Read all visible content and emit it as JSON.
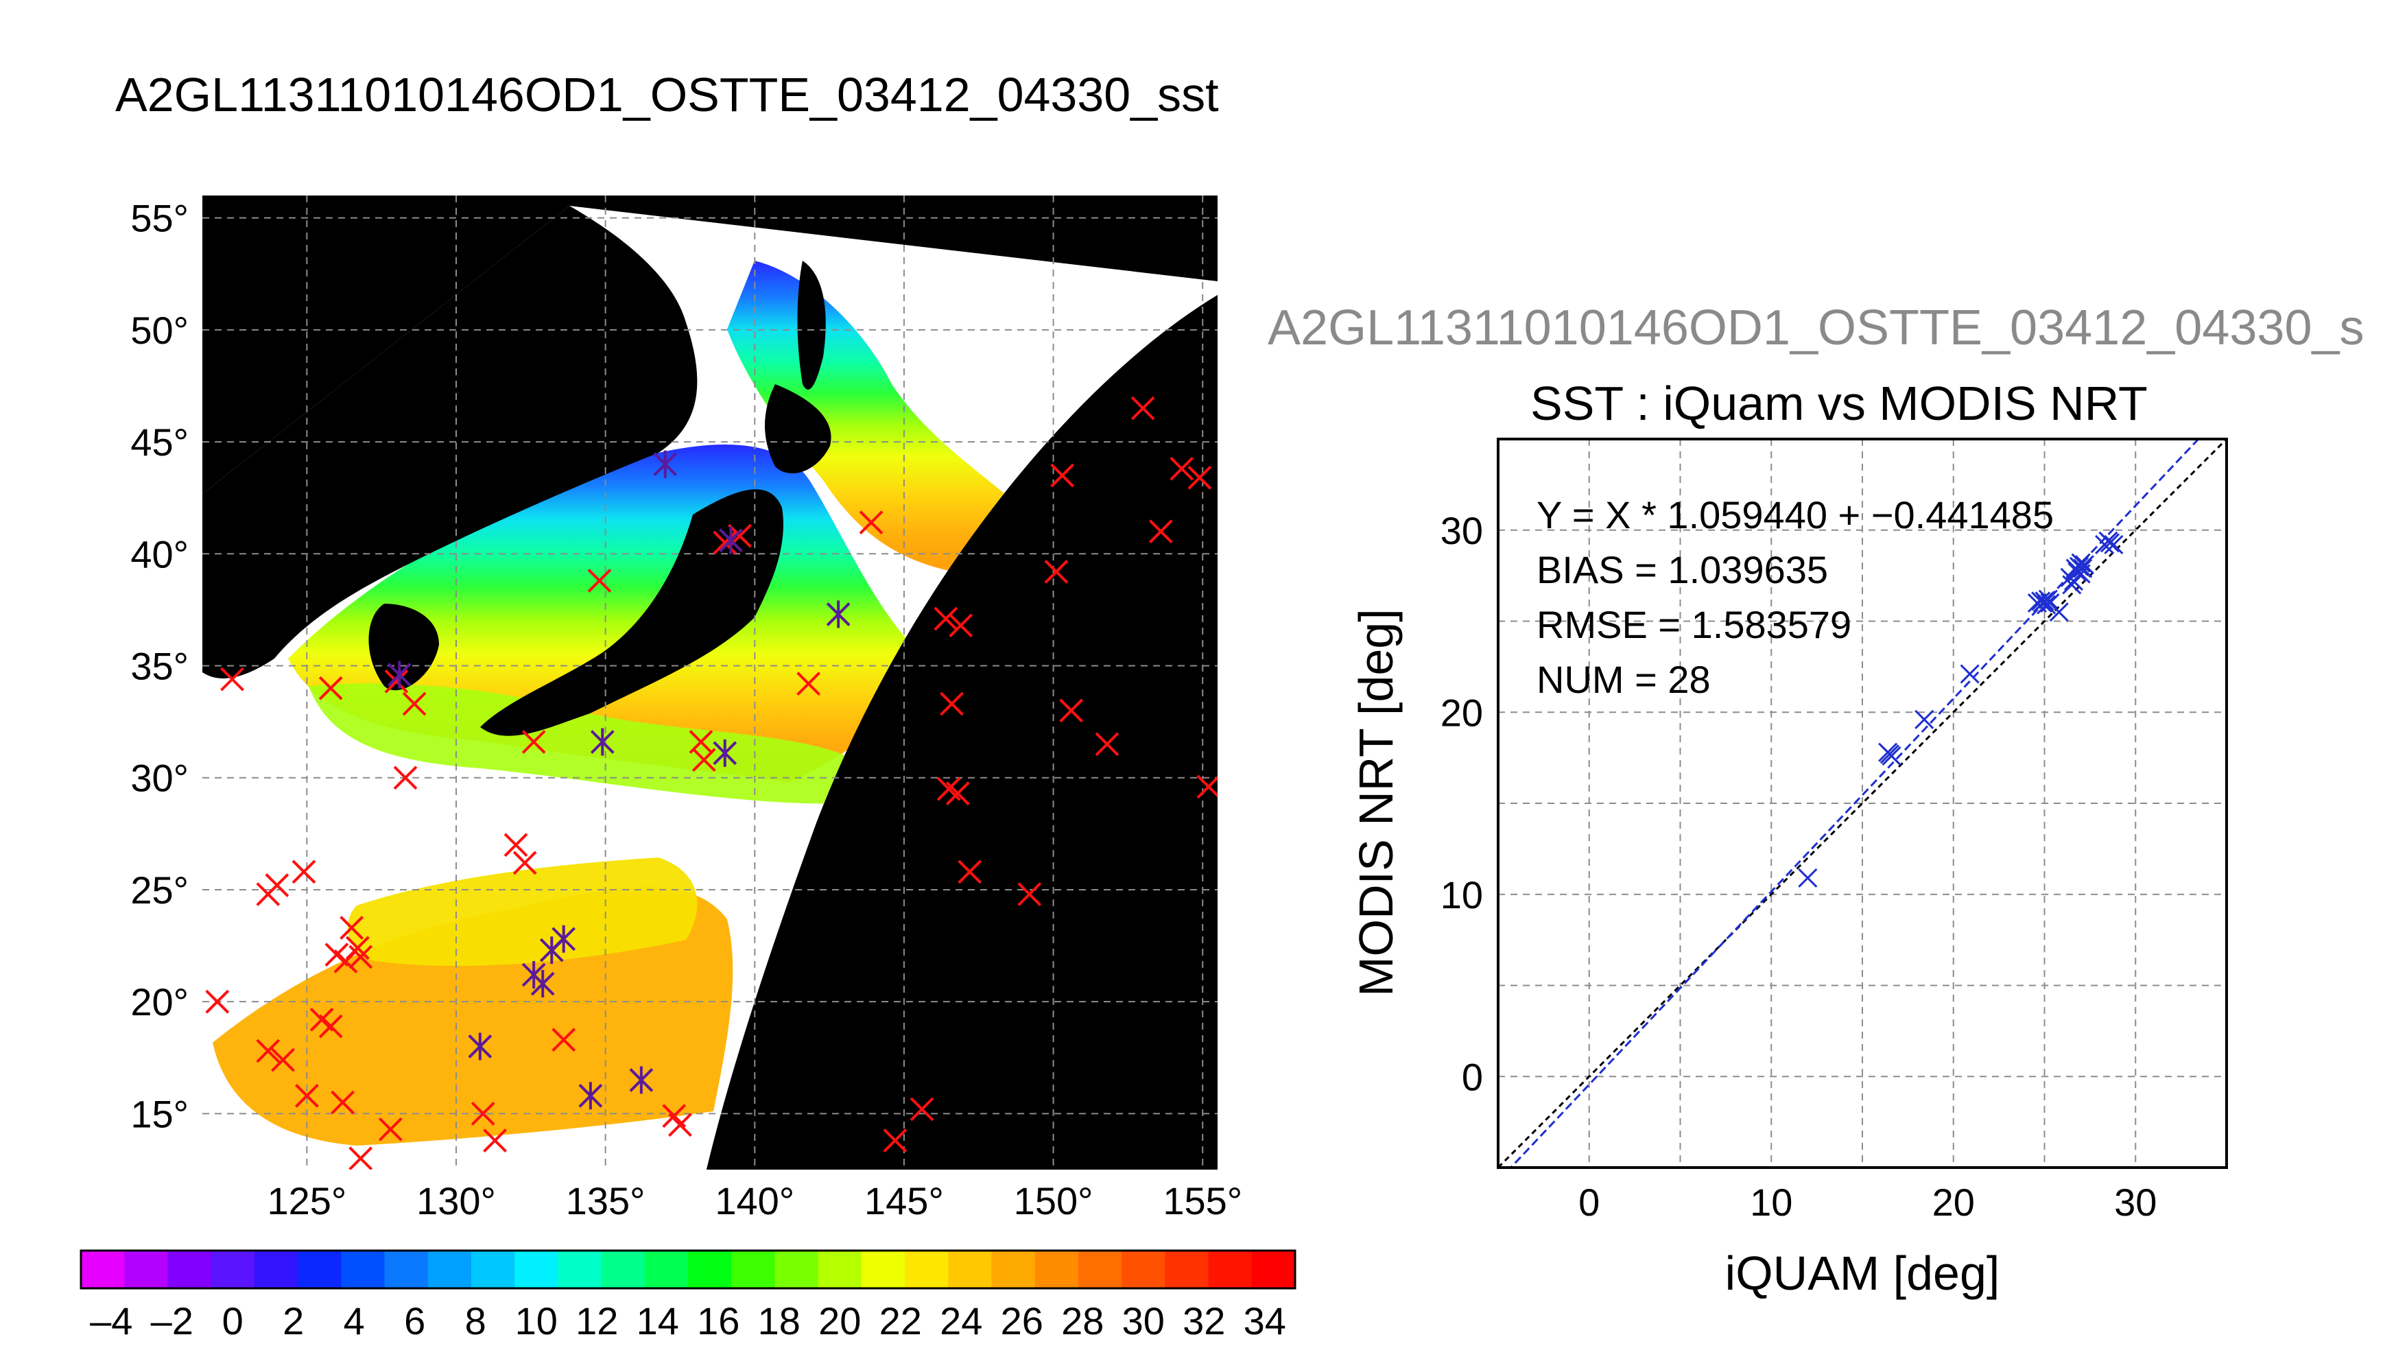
{
  "figure": {
    "title": "A2GL11311010146OD1_OSTTE_03412_04330_sst"
  },
  "map": {
    "lon_ticks": [
      125,
      130,
      135,
      140,
      145,
      150,
      155
    ],
    "lat_ticks": [
      55,
      50,
      45,
      40,
      35,
      30,
      25,
      20,
      15
    ],
    "lon_range": [
      121.5,
      155.5
    ],
    "lat_range": [
      12.5,
      56
    ],
    "degree_symbol": "°",
    "grid": true,
    "background_color": "#000000",
    "cloud_color": "#ffffff",
    "match_markers_red": [
      [
        122.5,
        34.4
      ],
      [
        123.7,
        24.8
      ],
      [
        124.0,
        25.2
      ],
      [
        124.9,
        25.8
      ],
      [
        123.7,
        17.8
      ],
      [
        124.2,
        17.4
      ],
      [
        125.0,
        15.8
      ],
      [
        125.5,
        19.2
      ],
      [
        125.8,
        18.9
      ],
      [
        126.0,
        22.1
      ],
      [
        126.3,
        21.8
      ],
      [
        126.7,
        22.4
      ],
      [
        126.5,
        23.3
      ],
      [
        126.8,
        22.0
      ],
      [
        126.2,
        15.5
      ],
      [
        126.8,
        13.0
      ],
      [
        127.8,
        14.3
      ],
      [
        128.3,
        30.0
      ],
      [
        128.6,
        33.3
      ],
      [
        128.0,
        34.3
      ],
      [
        125.8,
        34.0
      ],
      [
        122.0,
        20.0
      ],
      [
        130.9,
        15.0
      ],
      [
        131.3,
        13.8
      ],
      [
        132.0,
        27.0
      ],
      [
        132.3,
        26.2
      ],
      [
        132.6,
        31.6
      ],
      [
        133.6,
        18.3
      ],
      [
        134.8,
        38.8
      ],
      [
        138.2,
        31.6
      ],
      [
        138.3,
        30.8
      ],
      [
        139.0,
        40.5
      ],
      [
        139.5,
        40.8
      ],
      [
        141.8,
        34.2
      ],
      [
        143.9,
        41.4
      ],
      [
        144.7,
        13.8
      ],
      [
        145.6,
        15.2
      ],
      [
        146.4,
        37.1
      ],
      [
        146.9,
        36.8
      ],
      [
        146.5,
        29.5
      ],
      [
        146.8,
        29.3
      ],
      [
        146.6,
        33.3
      ],
      [
        147.2,
        25.8
      ],
      [
        149.2,
        24.8
      ],
      [
        150.1,
        39.2
      ],
      [
        150.3,
        43.5
      ],
      [
        150.6,
        33.0
      ],
      [
        151.8,
        31.5
      ],
      [
        153.0,
        46.5
      ],
      [
        153.6,
        41.0
      ],
      [
        154.3,
        43.8
      ],
      [
        154.9,
        43.4
      ],
      [
        155.2,
        29.6
      ],
      [
        137.5,
        14.5
      ],
      [
        137.3,
        14.9
      ]
    ],
    "match_markers_purple": [
      [
        137.0,
        44.0
      ],
      [
        128.1,
        34.6
      ],
      [
        134.9,
        31.6
      ],
      [
        139.0,
        31.1
      ],
      [
        142.8,
        37.3
      ],
      [
        139.2,
        40.6
      ],
      [
        133.2,
        22.3
      ],
      [
        133.6,
        22.8
      ],
      [
        132.6,
        21.2
      ],
      [
        132.9,
        20.8
      ],
      [
        130.8,
        18.0
      ],
      [
        134.5,
        15.8
      ],
      [
        136.2,
        16.5
      ]
    ]
  },
  "colorbar": {
    "labels": [
      "–4",
      "–2",
      "0",
      "2",
      "4",
      "6",
      "8",
      "10",
      "12",
      "14",
      "16",
      "18",
      "20",
      "22",
      "24",
      "26",
      "28",
      "30",
      "32",
      "34"
    ],
    "colors": [
      "#e600ff",
      "#b400ff",
      "#8200ff",
      "#5a14ff",
      "#3214ff",
      "#0a28ff",
      "#0050ff",
      "#0a78ff",
      "#00a0ff",
      "#00c8ff",
      "#00f0ff",
      "#00ffc8",
      "#00ff8c",
      "#00ff50",
      "#00ff14",
      "#3cff00",
      "#78ff00",
      "#b4ff00",
      "#f0ff00",
      "#ffe600",
      "#ffc800",
      "#ffaa00",
      "#ff8c00",
      "#ff6e00",
      "#ff5000",
      "#ff3200",
      "#ff1400",
      "#ff0000"
    ]
  },
  "scatter": {
    "header": "A2GL11311010146OD1_OSTTE_03412_04330_s",
    "title": "SST : iQuam vs MODIS NRT",
    "xlabel": "iQUAM [deg]",
    "ylabel": "MODIS NRT [deg]",
    "xlim": [
      -5,
      35
    ],
    "ylim": [
      -5,
      35
    ],
    "x_ticks": [
      0,
      10,
      20,
      30
    ],
    "y_ticks": [
      0,
      10,
      20,
      30
    ],
    "grid": true,
    "stats": {
      "fit": "Y = X * 1.059440 + −0.441485",
      "bias": "BIAS = 1.039635",
      "rmse": "RMSE = 1.583579",
      "num": "NUM = 28"
    },
    "fit_line": {
      "slope": 1.05944,
      "intercept": -0.441485,
      "color": "#1f2fd0"
    },
    "identity_line": {
      "slope": 1,
      "intercept": 0,
      "color": "#000000"
    },
    "points": [
      [
        12.0,
        10.9
      ],
      [
        16.4,
        17.8
      ],
      [
        16.6,
        17.6
      ],
      [
        18.4,
        19.6
      ],
      [
        20.9,
        22.1
      ],
      [
        24.6,
        26.0
      ],
      [
        24.9,
        26.0
      ],
      [
        25.1,
        25.9
      ],
      [
        25.3,
        26.0
      ],
      [
        25.8,
        25.5
      ],
      [
        26.4,
        27.4
      ],
      [
        26.5,
        27.0
      ],
      [
        26.7,
        27.9
      ],
      [
        26.9,
        28.0
      ],
      [
        27.0,
        27.6
      ],
      [
        27.2,
        28.1
      ],
      [
        27.0,
        28.2
      ],
      [
        26.8,
        27.7
      ],
      [
        28.3,
        29.2
      ],
      [
        28.6,
        29.3
      ],
      [
        28.8,
        29.2
      ],
      [
        24.8,
        26.1
      ],
      [
        25.0,
        26.1
      ],
      [
        26.6,
        27.2
      ],
      [
        27.1,
        27.9
      ],
      [
        25.2,
        26.2
      ],
      [
        16.5,
        17.7
      ],
      [
        28.5,
        29.4
      ]
    ]
  }
}
